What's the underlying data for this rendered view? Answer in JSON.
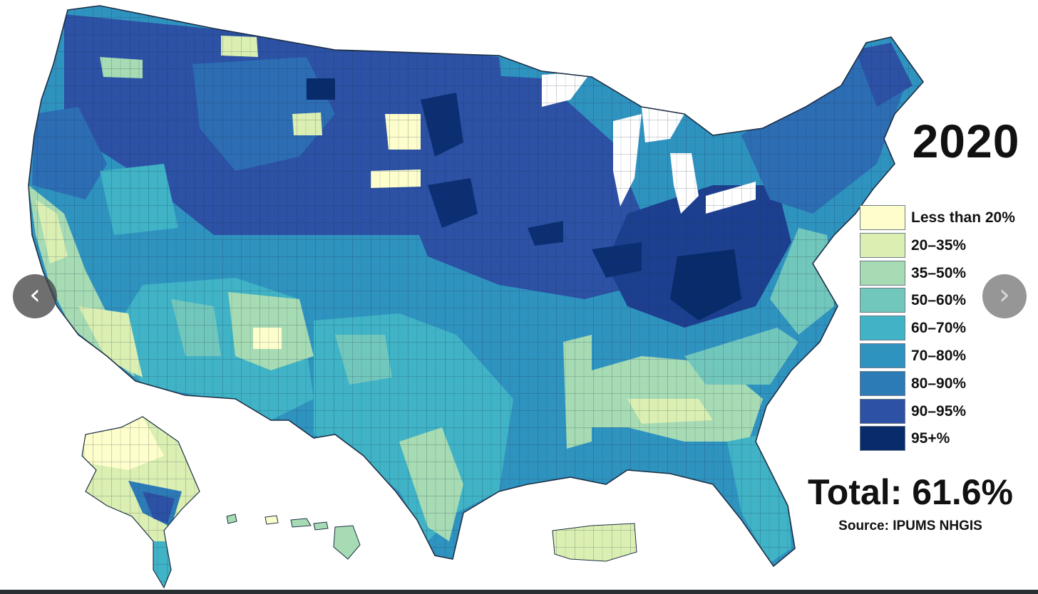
{
  "year": "2020",
  "legend": {
    "items": [
      {
        "label": "Less than 20%",
        "color": "#fdfecb"
      },
      {
        "label": "20–35%",
        "color": "#dbefb3"
      },
      {
        "label": "35–50%",
        "color": "#a6dbb4"
      },
      {
        "label": "50–60%",
        "color": "#72c7bc"
      },
      {
        "label": "60–70%",
        "color": "#40b3c6"
      },
      {
        "label": "70–80%",
        "color": "#2f93c0"
      },
      {
        "label": "80–90%",
        "color": "#2c7bb6"
      },
      {
        "label": "90–95%",
        "color": "#2c51a5"
      },
      {
        "label": "95+%",
        "color": "#082b6b"
      }
    ]
  },
  "total": "Total: 61.6%",
  "source": "Source: IPUMS NHGIS",
  "nav": {
    "prev_icon": "chevron-left-icon",
    "next_icon": "chevron-right-icon"
  },
  "colors": {
    "county_border": "#1d2f44",
    "background": "#ffffff"
  }
}
